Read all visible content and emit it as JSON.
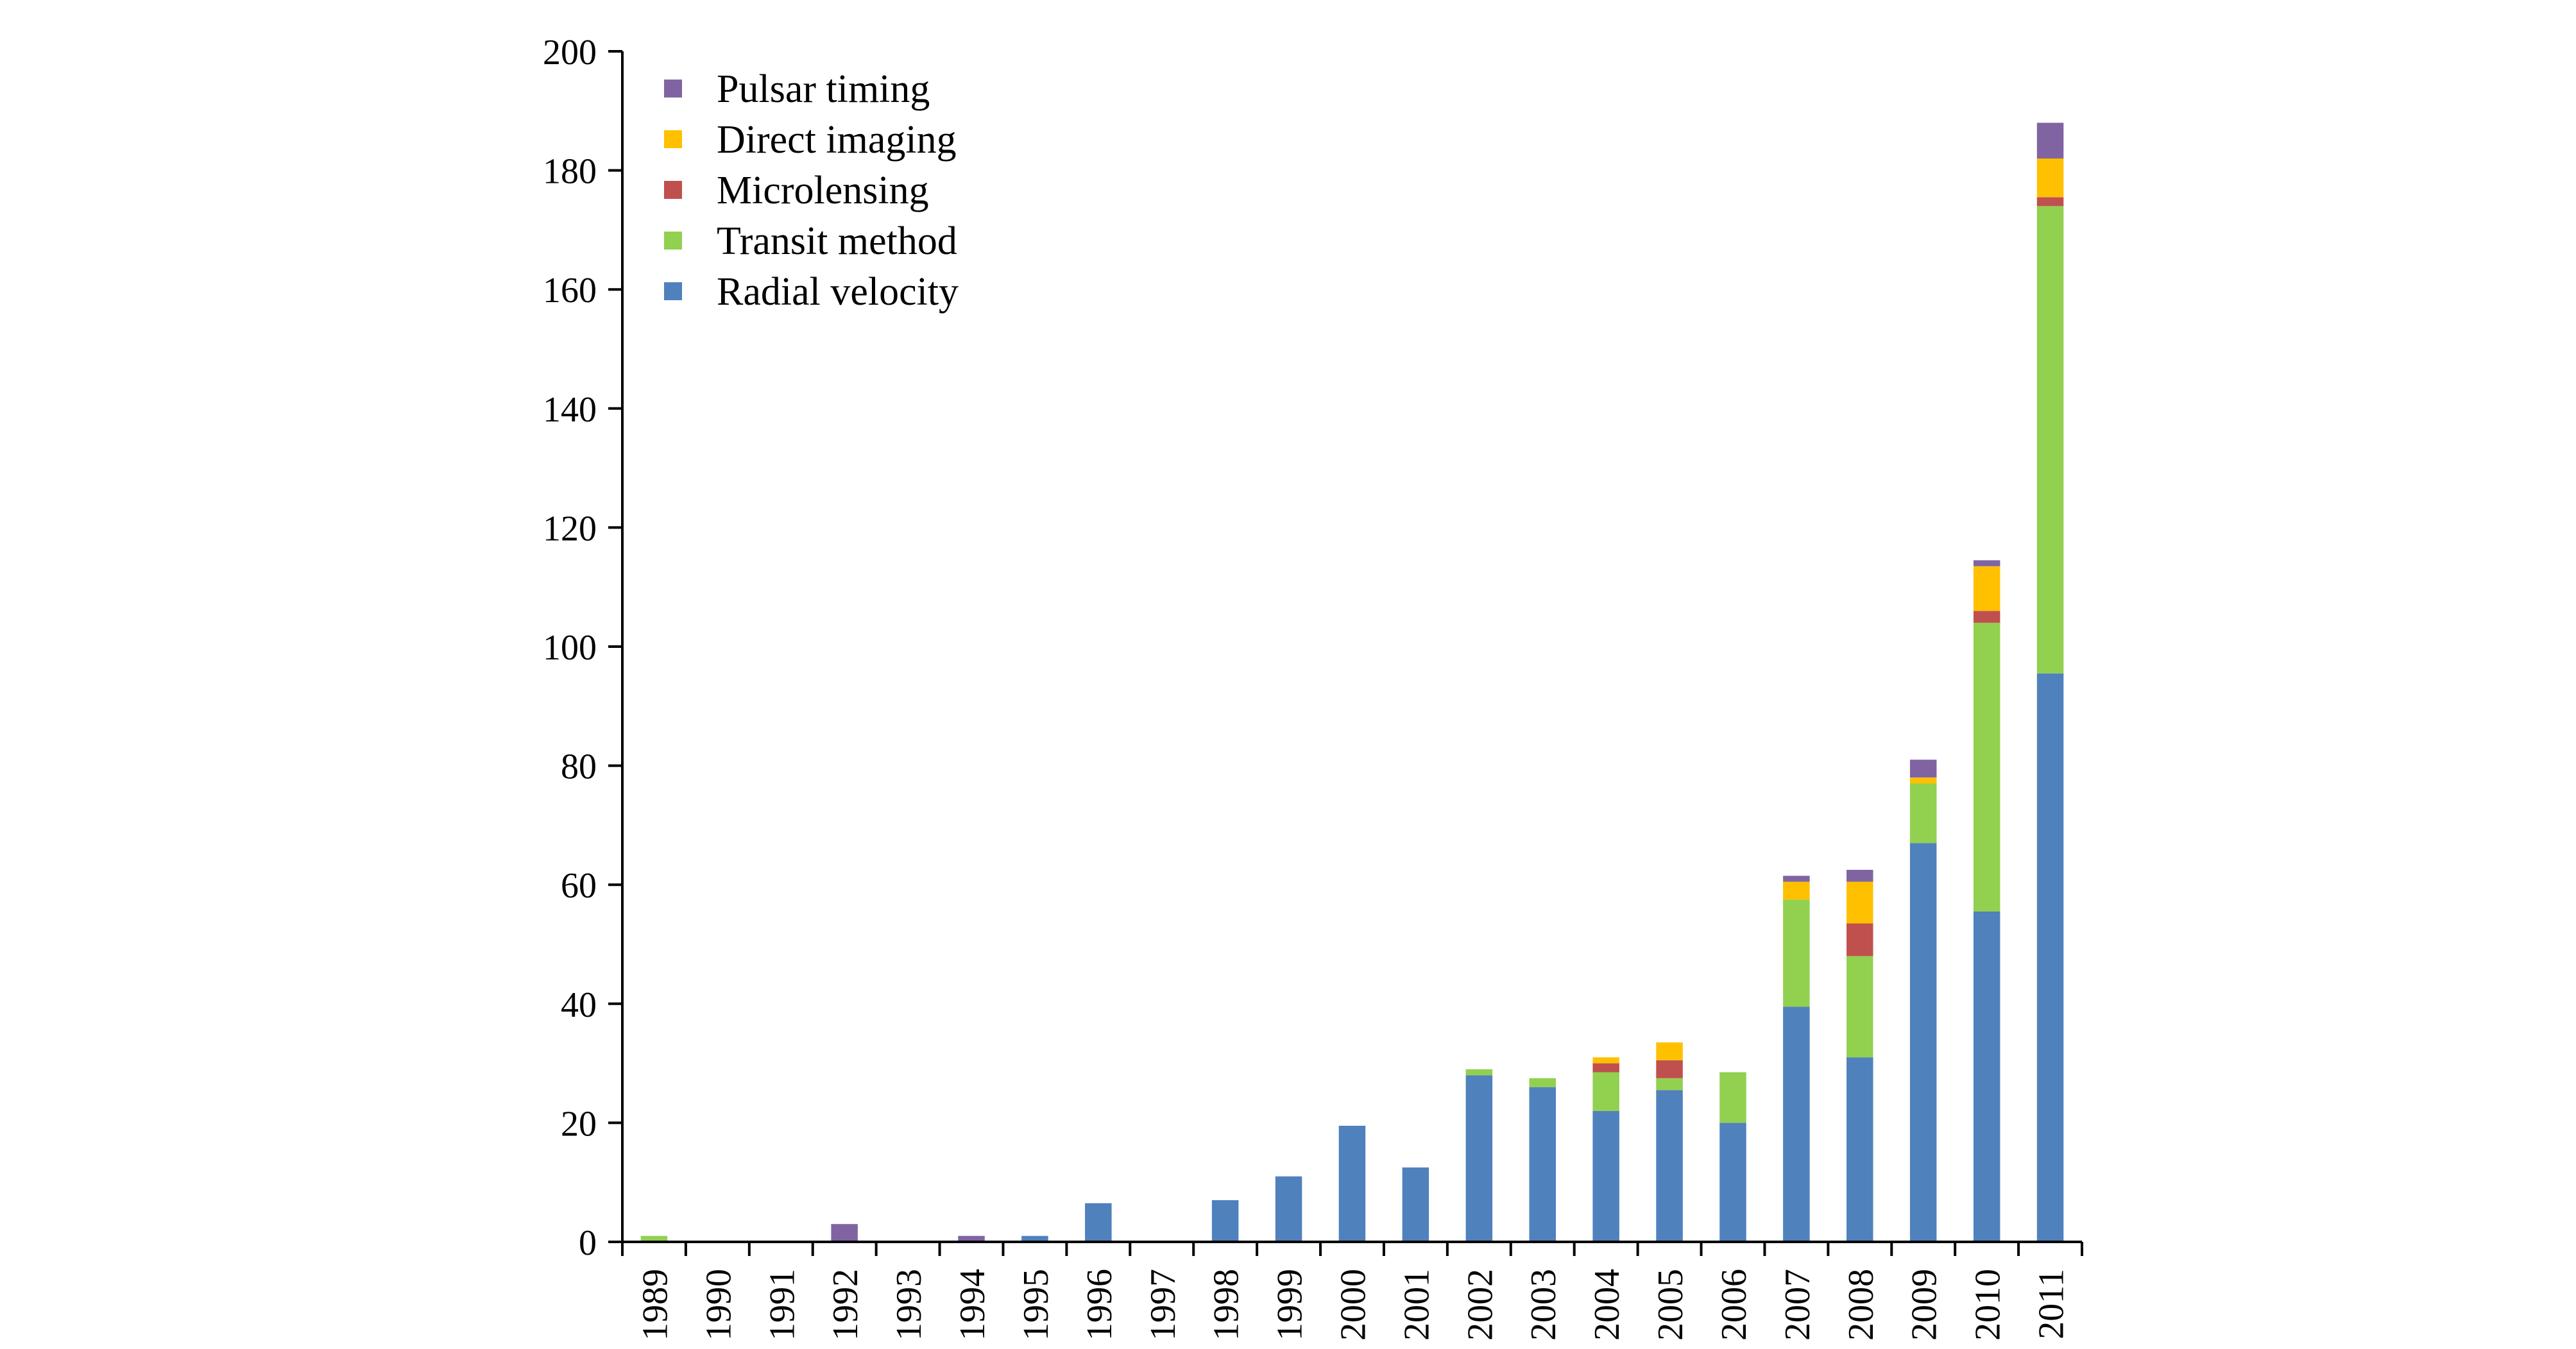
{
  "chart_data": {
    "type": "bar",
    "stacked": true,
    "title": "",
    "xlabel": "",
    "ylabel": "",
    "ylim": [
      0,
      200
    ],
    "yticks": [
      0,
      20,
      40,
      60,
      80,
      100,
      120,
      140,
      160,
      180,
      200
    ],
    "grid": false,
    "legend_position": "top-left",
    "categories": [
      "1989",
      "1990",
      "1991",
      "1992",
      "1993",
      "1994",
      "1995",
      "1996",
      "1997",
      "1998",
      "1999",
      "2000",
      "2001",
      "2002",
      "2003",
      "2004",
      "2005",
      "2006",
      "2007",
      "2008",
      "2009",
      "2010",
      "2011"
    ],
    "series": [
      {
        "name": "Radial velocity",
        "color": "#4F81BD",
        "values": [
          0,
          0,
          0,
          0,
          0,
          0,
          1,
          6.5,
          0,
          7,
          11,
          19.5,
          12.5,
          28,
          26,
          22,
          25.5,
          20,
          39.5,
          31,
          67,
          55.5,
          95.5
        ]
      },
      {
        "name": "Transit method",
        "color": "#92D050",
        "values": [
          1,
          0,
          0,
          0,
          0,
          0,
          0,
          0,
          0,
          0,
          0,
          0,
          0,
          1,
          1.5,
          6.5,
          2,
          8.5,
          18,
          17,
          10,
          48.5,
          78.5
        ]
      },
      {
        "name": "Microlensing",
        "color": "#C0504D",
        "values": [
          0,
          0,
          0,
          0,
          0,
          0,
          0,
          0,
          0,
          0,
          0,
          0,
          0,
          0,
          0,
          1.5,
          3,
          0,
          0,
          5.5,
          0,
          2,
          1.5
        ]
      },
      {
        "name": "Direct imaging",
        "color": "#FFC000",
        "values": [
          0,
          0,
          0,
          0,
          0,
          0,
          0,
          0,
          0,
          0,
          0,
          0,
          0,
          0,
          0,
          1,
          3,
          0,
          3,
          7,
          1,
          7.5,
          6.5
        ]
      },
      {
        "name": "Pulsar timing",
        "color": "#8064A2",
        "values": [
          0,
          0,
          0,
          3,
          0,
          1,
          0,
          0,
          0,
          0,
          0,
          0,
          0,
          0,
          0,
          0,
          0,
          0,
          1,
          2,
          3,
          1,
          6
        ]
      }
    ],
    "legend_order": [
      "Pulsar timing",
      "Direct imaging",
      "Microlensing",
      "Transit method",
      "Radial velocity"
    ]
  }
}
